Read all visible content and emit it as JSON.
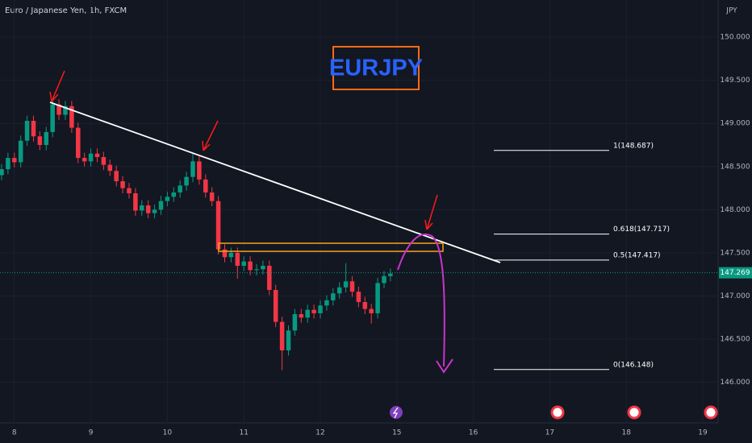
{
  "chart_data": {
    "type": "candlestick",
    "title": "Euro / Japanese Yen, 1h, FXCM",
    "currency": "JPY",
    "symbol": "EURJPY",
    "xlim": [
      -4.5,
      220.8
    ],
    "ylim": [
      145.53,
      150.43
    ],
    "xticks": [
      {
        "value": 0,
        "label": "8"
      },
      {
        "value": 24,
        "label": "9"
      },
      {
        "value": 48,
        "label": "10"
      },
      {
        "value": 72,
        "label": "11"
      },
      {
        "value": 96,
        "label": "12"
      },
      {
        "value": 120,
        "label": "15"
      },
      {
        "value": 144,
        "label": "16"
      },
      {
        "value": 168,
        "label": "17"
      },
      {
        "value": 192,
        "label": "18"
      },
      {
        "value": 216,
        "label": "19"
      }
    ],
    "yticks": [
      {
        "value": 146,
        "label": "146.000"
      },
      {
        "value": 146.5,
        "label": "146.500"
      },
      {
        "value": 147,
        "label": "147.000"
      },
      {
        "value": 147.5,
        "label": "147.500"
      },
      {
        "value": 148,
        "label": "148.000"
      },
      {
        "value": 148.5,
        "label": "148.500"
      },
      {
        "value": 149,
        "label": "149.000"
      },
      {
        "value": 149.5,
        "label": "149.500"
      },
      {
        "value": 150,
        "label": "150.000"
      }
    ],
    "up_color": "#089981",
    "down_color": "#f23645",
    "last_price": {
      "value": 147.269,
      "label": "147.269"
    },
    "fib_levels": [
      {
        "value": 148.687,
        "label": "1(148.687)"
      },
      {
        "value": 147.717,
        "label": "0.618(147.717)"
      },
      {
        "value": 147.417,
        "label": "0.5(147.417)"
      },
      {
        "value": 146.148,
        "label": "0(146.148)"
      }
    ],
    "x": [
      -4,
      -2,
      0,
      2,
      4,
      6,
      8,
      10,
      12,
      14,
      16,
      18,
      20,
      22,
      24,
      26,
      28,
      30,
      32,
      34,
      36,
      38,
      40,
      42,
      44,
      46,
      48,
      50,
      52,
      54,
      56,
      58,
      60,
      62,
      64,
      66,
      68,
      70,
      72,
      74,
      76,
      78,
      80,
      82,
      84,
      86,
      88,
      90,
      92,
      94,
      96,
      98,
      100,
      102,
      104,
      106,
      108,
      110,
      112,
      114,
      116,
      118
    ],
    "open": [
      148.4,
      148.47,
      148.6,
      148.55,
      148.8,
      149.03,
      148.85,
      148.75,
      148.9,
      149.22,
      149.1,
      149.2,
      148.95,
      148.6,
      148.56,
      148.65,
      148.61,
      148.52,
      148.45,
      148.33,
      148.25,
      148.19,
      147.99,
      148.05,
      147.96,
      148.0,
      148.1,
      148.15,
      148.2,
      148.28,
      148.38,
      148.56,
      148.35,
      148.2,
      148.1,
      147.54,
      147.45,
      147.5,
      147.35,
      147.4,
      147.3,
      147.31,
      147.35,
      147.07,
      146.7,
      146.37,
      146.6,
      146.79,
      146.75,
      146.84,
      146.8,
      146.89,
      146.95,
      147.03,
      147.1,
      147.17,
      147.05,
      146.93,
      146.85,
      146.8,
      147.15,
      147.23
    ],
    "high": [
      148.53,
      148.66,
      148.66,
      148.86,
      149.09,
      149.09,
      148.91,
      148.96,
      149.27,
      149.28,
      149.26,
      149.26,
      149.01,
      148.66,
      148.71,
      148.71,
      148.67,
      148.58,
      148.51,
      148.39,
      148.31,
      148.25,
      148.11,
      148.11,
      148.06,
      148.16,
      148.21,
      148.26,
      148.34,
      148.44,
      148.66,
      148.62,
      148.41,
      148.26,
      148.16,
      147.6,
      147.56,
      147.56,
      147.46,
      147.46,
      147.37,
      147.41,
      147.41,
      147.13,
      146.76,
      146.66,
      146.85,
      146.85,
      146.9,
      146.9,
      146.95,
      147.01,
      147.09,
      147.16,
      147.38,
      147.23,
      147.11,
      146.99,
      146.91,
      147.21,
      147.29,
      147.32
    ],
    "low": [
      148.34,
      148.41,
      148.49,
      148.49,
      148.74,
      148.79,
      148.69,
      148.69,
      148.84,
      149.04,
      149.04,
      148.89,
      148.54,
      148.5,
      148.5,
      148.55,
      148.46,
      148.39,
      148.27,
      148.19,
      148.13,
      147.93,
      147.93,
      147.9,
      147.9,
      147.94,
      148.04,
      148.09,
      148.14,
      148.22,
      148.32,
      148.29,
      148.14,
      148.04,
      147.48,
      147.39,
      147.39,
      147.2,
      147.29,
      147.24,
      147.24,
      147.25,
      147.01,
      146.64,
      146.14,
      146.31,
      146.54,
      146.69,
      146.69,
      146.74,
      146.74,
      146.83,
      146.89,
      146.97,
      147.04,
      146.99,
      146.87,
      146.79,
      146.68,
      146.74,
      147.09,
      147.17
    ],
    "close": [
      148.47,
      148.6,
      148.55,
      148.8,
      149.03,
      148.85,
      148.75,
      148.9,
      149.22,
      149.1,
      149.2,
      148.95,
      148.6,
      148.56,
      148.65,
      148.61,
      148.52,
      148.45,
      148.33,
      148.25,
      148.19,
      147.99,
      148.05,
      147.96,
      148.0,
      148.1,
      148.15,
      148.2,
      148.28,
      148.38,
      148.56,
      148.35,
      148.2,
      148.1,
      147.54,
      147.45,
      147.5,
      147.35,
      147.4,
      147.3,
      147.31,
      147.35,
      147.07,
      146.7,
      146.37,
      146.6,
      146.79,
      146.75,
      146.84,
      146.8,
      146.89,
      146.95,
      147.03,
      147.1,
      147.17,
      147.05,
      146.93,
      146.85,
      146.8,
      147.15,
      147.23,
      147.26
    ]
  }
}
